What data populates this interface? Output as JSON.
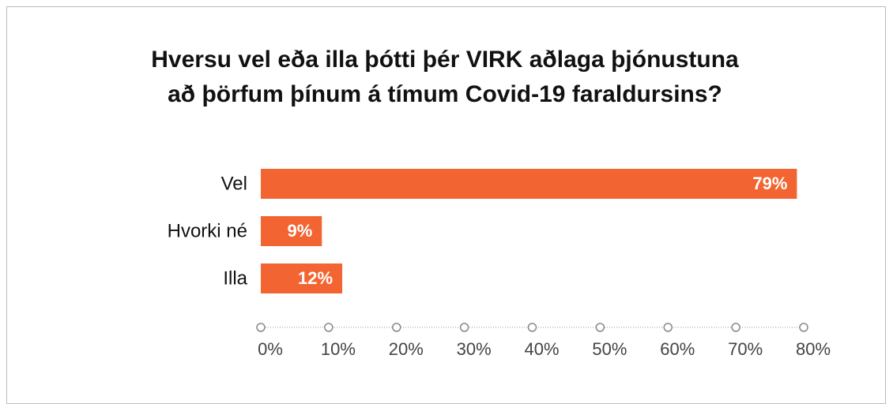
{
  "chart_data": {
    "type": "bar",
    "orientation": "horizontal",
    "title": [
      "Hversu vel eða illa þótti þér VIRK aðlaga þjónustuna",
      "að þörfum þínum á tímum Covid-19 faraldursins?"
    ],
    "categories": [
      "Vel",
      "Hvorki né",
      "Illa"
    ],
    "values": [
      79,
      9,
      12
    ],
    "value_labels": [
      "79%",
      "9%",
      "12%"
    ],
    "color": "#f26532",
    "xlim": [
      0,
      80
    ],
    "xticks": [
      {
        "value": 0,
        "label": "0%"
      },
      {
        "value": 10,
        "label": "10%"
      },
      {
        "value": 20,
        "label": "20%"
      },
      {
        "value": 30,
        "label": "30%"
      },
      {
        "value": 40,
        "label": "40%"
      },
      {
        "value": 50,
        "label": "50%"
      },
      {
        "value": 60,
        "label": "60%"
      },
      {
        "value": 70,
        "label": "70%"
      },
      {
        "value": 80,
        "label": "80%"
      }
    ]
  }
}
